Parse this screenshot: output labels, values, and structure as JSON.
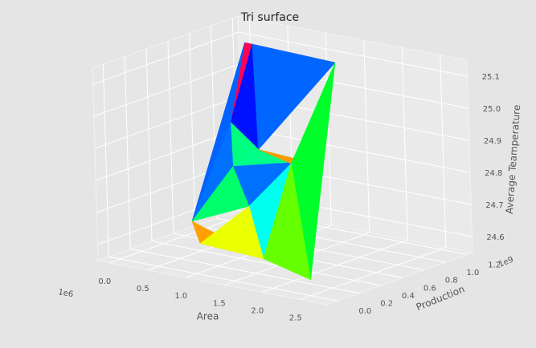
{
  "chart_data": {
    "type": "surface",
    "title": "Tri surface",
    "xlabel": "Area",
    "ylabel": "Production",
    "zlabel": "Average Teamperature",
    "x_offset_label": "1e6",
    "y_offset_label": "1e9",
    "x_ticks": [
      "0.0",
      "0.5",
      "1.0",
      "1.5",
      "2.0",
      "2.5"
    ],
    "y_ticks": [
      "0.0",
      "0.2",
      "0.4",
      "0.6",
      "0.8",
      "1.0",
      "1.2"
    ],
    "z_ticks": [
      "24.6",
      "24.7",
      "24.8",
      "24.9",
      "25.0",
      "25.1"
    ],
    "xlim": [
      -0.15,
      2.85
    ],
    "ylim": [
      -0.1,
      1.25
    ],
    "zlim": [
      24.55,
      25.15
    ],
    "colormap": "gist_rainbow",
    "grid": true,
    "points": [
      {
        "area": 0.0,
        "production": 1.2,
        "temp": 25.08
      },
      {
        "area": 0.1,
        "production": 1.2,
        "temp": 25.08
      },
      {
        "area": 0.0,
        "production": 1.05,
        "temp": 24.85
      },
      {
        "area": 0.5,
        "production": 0.95,
        "temp": 24.8
      },
      {
        "area": 1.2,
        "production": 0.9,
        "temp": 24.8
      },
      {
        "area": 1.4,
        "production": 1.05,
        "temp": 25.1
      },
      {
        "area": 2.5,
        "production": 0.0,
        "temp": 24.6
      },
      {
        "area": 1.6,
        "production": 0.2,
        "temp": 24.6
      },
      {
        "area": 0.7,
        "production": 0.25,
        "temp": 24.6
      },
      {
        "area": 0.1,
        "production": 0.6,
        "temp": 24.6
      },
      {
        "area": 1.0,
        "production": 0.5,
        "temp": 24.7
      },
      {
        "area": 1.5,
        "production": 0.55,
        "temp": 24.85
      },
      {
        "area": 0.3,
        "production": 0.85,
        "temp": 24.75
      }
    ],
    "faces": [
      {
        "v": [
          0,
          2,
          9
        ],
        "color": "#0062ff"
      },
      {
        "v": [
          0,
          1,
          2
        ],
        "color": "#ff0055"
      },
      {
        "v": [
          1,
          5,
          3
        ],
        "color": "#0066ff"
      },
      {
        "v": [
          1,
          3,
          2
        ],
        "color": "#0011ff"
      },
      {
        "v": [
          5,
          6,
          11
        ],
        "color": "#00ff2a"
      },
      {
        "v": [
          11,
          6,
          7
        ],
        "color": "#66ff00"
      },
      {
        "v": [
          3,
          4,
          11
        ],
        "color": "#ff9900"
      },
      {
        "v": [
          9,
          8,
          7
        ],
        "color": "#ff9f00"
      },
      {
        "v": [
          8,
          10,
          7
        ],
        "color": "#eaff00"
      },
      {
        "v": [
          2,
          3,
          12
        ],
        "color": "#00ff80"
      },
      {
        "v": [
          12,
          3,
          4
        ],
        "color": "#00ff88"
      },
      {
        "v": [
          2,
          12,
          9
        ],
        "color": "#0070ff"
      },
      {
        "v": [
          12,
          10,
          9
        ],
        "color": "#00ff6a"
      },
      {
        "v": [
          4,
          11,
          10
        ],
        "color": "#0077ff"
      },
      {
        "v": [
          10,
          11,
          7
        ],
        "color": "#00ffee"
      },
      {
        "v": [
          12,
          4,
          10
        ],
        "color": "#0070ff"
      }
    ]
  }
}
